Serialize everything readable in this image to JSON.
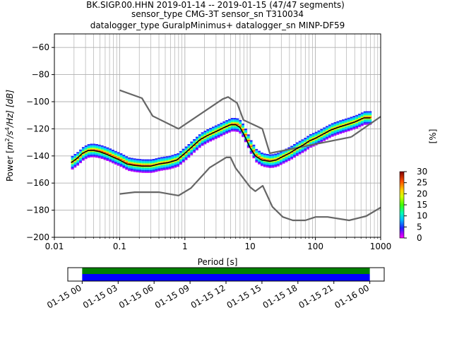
{
  "title_lines": [
    "BK.SIGP.00.HHN   2019-01-14 -- 2019-01-15  (47/47 segments)",
    "sensor_type CMG-3T sensor_sn T310034",
    "datalogger_type GuralpMinimus+ datalogger_sn MINP-DF59"
  ],
  "chart_data": [
    {
      "type": "heatmap",
      "title": "BK.SIGP.00.HHN   2019-01-14 -- 2019-01-15  (47/47 segments)",
      "xlabel": "Period [s]",
      "ylabel": "Power [m²/s⁴/Hz] [dB]",
      "ylabel_parts": {
        "prefix": "Power [",
        "m": "m",
        "exp2": "2",
        "mid": "/s",
        "exp4": "4",
        "suffix": "/Hz] [dB]"
      },
      "x_scale": "log",
      "xlim": [
        0.01,
        1000
      ],
      "ylim": [
        -200,
        -50
      ],
      "x_ticks": [
        0.01,
        0.1,
        1,
        10,
        100,
        1000
      ],
      "x_tick_labels": [
        "0.01",
        "0.1",
        "1",
        "10",
        "100",
        "1000"
      ],
      "y_ticks": [
        -200,
        -180,
        -160,
        -140,
        -120,
        -100,
        -80,
        -60
      ],
      "y_tick_labels": [
        "−200",
        "−180",
        "−160",
        "−140",
        "−120",
        "−100",
        "−80",
        "−60"
      ],
      "grid": true,
      "noise_model_high": {
        "x": [
          0.1,
          0.22,
          0.32,
          0.8,
          3.8,
          4.6,
          6.3,
          7.9,
          15.4,
          20,
          354.8
        ],
        "y": [
          -91.5,
          -97.4,
          -110.5,
          -120,
          -98,
          -96.5,
          -101,
          -113.5,
          -120,
          -138,
          -126
        ]
      },
      "noise_model_high_tail": {
        "x": [
          354.8,
          1000
        ],
        "y": [
          -126,
          -111
        ]
      },
      "noise_model_low": {
        "x": [
          0.1,
          0.17,
          0.4,
          0.8,
          1.24,
          2.4,
          4.3,
          5,
          6,
          10,
          12,
          15.6,
          21.9,
          31.6,
          45,
          70,
          101,
          154,
          328,
          600,
          1000
        ],
        "y": [
          -168,
          -166.7,
          -166.7,
          -169.2,
          -163.7,
          -148.6,
          -141.1,
          -141.1,
          -149,
          -163,
          -166,
          -162,
          -177.5,
          -185,
          -187.5,
          -187.5,
          -185,
          -185,
          -187.5,
          -184.4,
          -178
        ]
      },
      "mode_curve": {
        "x": [
          0.018,
          0.022,
          0.027,
          0.033,
          0.04,
          0.05,
          0.065,
          0.08,
          0.1,
          0.13,
          0.17,
          0.22,
          0.3,
          0.4,
          0.55,
          0.75,
          1.0,
          1.3,
          1.7,
          2.2,
          3.0,
          4.0,
          5.0,
          6.0,
          7.0,
          8.0,
          10,
          12,
          15,
          20,
          25,
          30,
          40,
          50,
          65,
          80,
          100,
          130,
          170,
          220,
          300,
          400,
          550,
          700
        ],
        "y": [
          -145,
          -142,
          -138,
          -136,
          -136,
          -137,
          -139,
          -141,
          -143,
          -146,
          -147,
          -147.5,
          -147.5,
          -146,
          -145,
          -143,
          -138,
          -133,
          -128,
          -125,
          -122,
          -119,
          -117,
          -117,
          -119,
          -124,
          -134,
          -140,
          -143,
          -144,
          -143,
          -141,
          -138,
          -135,
          -132,
          -129,
          -127,
          -124,
          -121,
          -119,
          -117,
          -115,
          -112,
          -112
        ]
      },
      "colorbar": {
        "label": "[%]",
        "range": [
          0,
          30
        ],
        "ticks": [
          0,
          5,
          10,
          15,
          20,
          25,
          30
        ],
        "tick_labels": [
          "0",
          "5",
          "10",
          "15",
          "20",
          "25",
          "30"
        ]
      },
      "colors": {
        "noise_model": "#666666",
        "mode": "#000000",
        "grid": "#b0b0b0"
      }
    },
    {
      "type": "bar",
      "title": "",
      "xlabel": "",
      "ylabel": "",
      "x_tick_labels": [
        "01-15 00",
        "01-15 03",
        "01-15 06",
        "01-15 09",
        "01-15 12",
        "01-15 15",
        "01-15 18",
        "01-15 21",
        "01-16 00"
      ],
      "x_tick_hours": [
        0,
        3,
        6,
        9,
        12,
        15,
        18,
        21,
        24
      ],
      "xlim_hours": [
        -1.2,
        25.2
      ],
      "coverage_segments_hours": [
        [
          0,
          24
        ]
      ],
      "colors": {
        "data_coverage": "#0000ff",
        "psd_coverage": "#008000"
      }
    }
  ]
}
